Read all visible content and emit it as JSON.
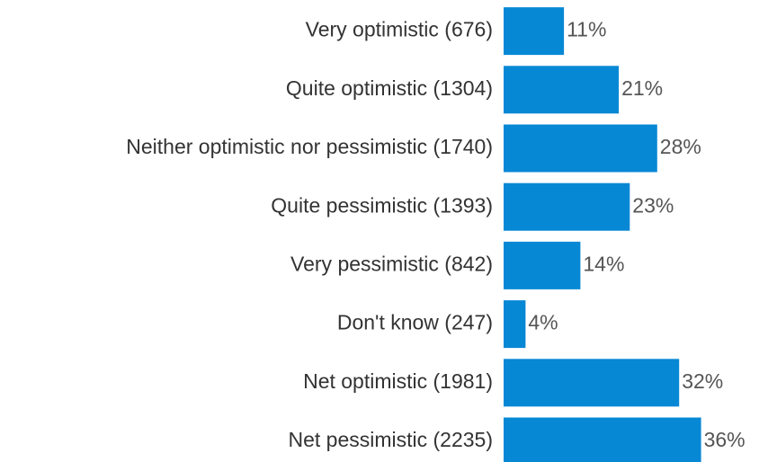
{
  "chart_data": {
    "type": "bar",
    "orientation": "horizontal",
    "categories": [
      "Very optimistic (676)",
      "Quite optimistic (1304)",
      "Neither optimistic nor pessimistic (1740)",
      "Quite pessimistic (1393)",
      "Very pessimistic (842)",
      "Don't know (247)",
      "Net optimistic (1981)",
      "Net pessimistic (2235)"
    ],
    "values": [
      11,
      21,
      28,
      23,
      14,
      4,
      32,
      36
    ],
    "value_labels": [
      "11%",
      "21%",
      "28%",
      "23%",
      "14%",
      "4%",
      "32%",
      "36%"
    ],
    "color": "#0788d5"
  }
}
